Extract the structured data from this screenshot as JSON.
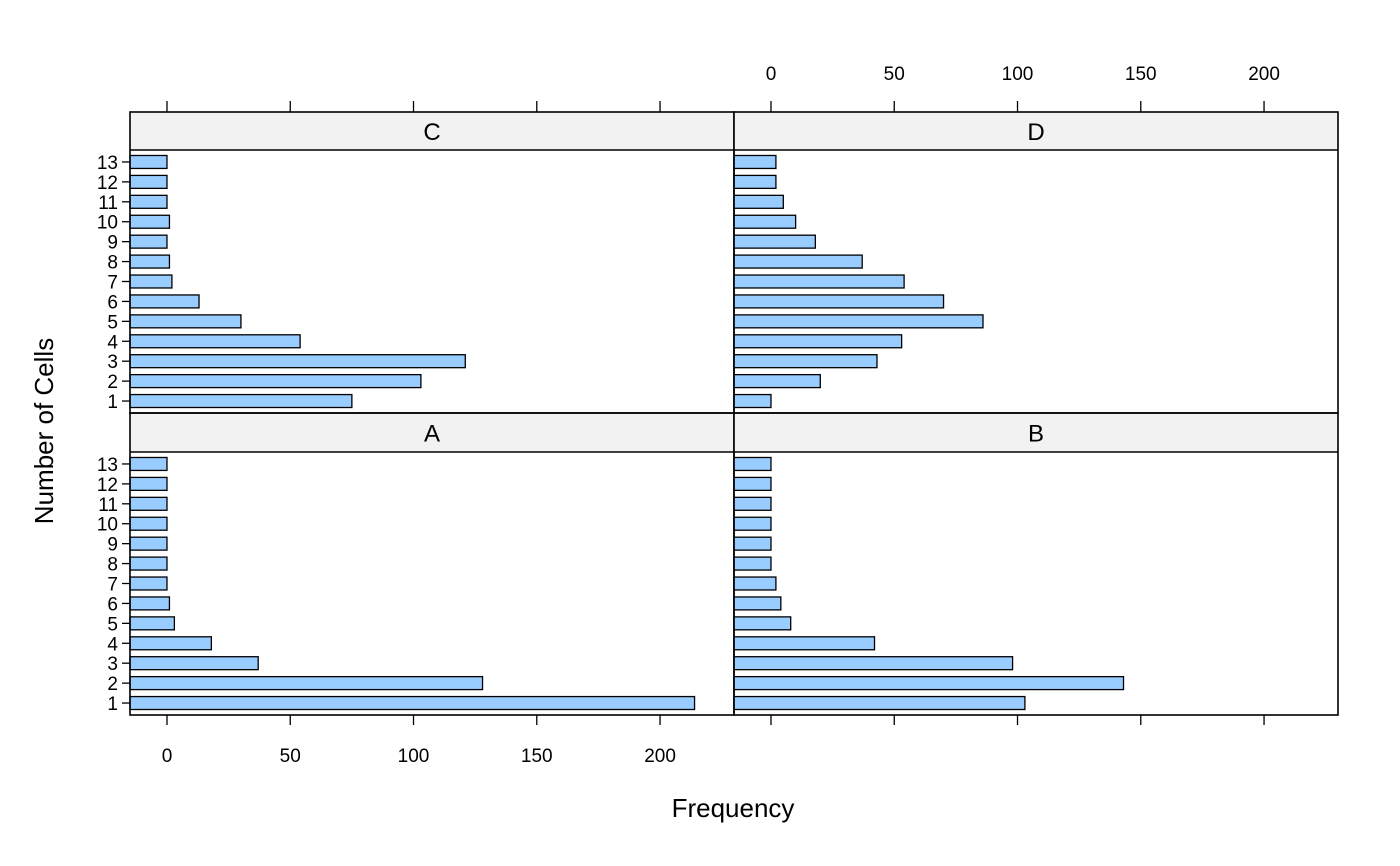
{
  "chart_data": {
    "type": "bar",
    "orientation": "horizontal",
    "layout": "2x2 panels",
    "xlabel": "Frequency",
    "ylabel": "Number of Cells",
    "categories": [
      "1",
      "2",
      "3",
      "4",
      "5",
      "6",
      "7",
      "8",
      "9",
      "10",
      "11",
      "12",
      "13"
    ],
    "x_ticks": [
      0,
      50,
      100,
      150,
      200
    ],
    "xlim": [
      -15,
      230
    ],
    "bar_color": "#99CCFF",
    "strip_color": "#F2F2F2",
    "panels": [
      {
        "name": "A",
        "values": [
          214,
          128,
          37,
          18,
          3,
          1,
          0,
          0,
          0,
          0,
          0,
          0,
          0
        ]
      },
      {
        "name": "B",
        "values": [
          103,
          143,
          98,
          42,
          8,
          4,
          2,
          0,
          0,
          0,
          0,
          0,
          0
        ]
      },
      {
        "name": "C",
        "values": [
          75,
          103,
          121,
          54,
          30,
          13,
          2,
          1,
          0,
          1,
          0,
          0,
          0
        ]
      },
      {
        "name": "D",
        "values": [
          0,
          20,
          43,
          53,
          86,
          70,
          54,
          37,
          18,
          10,
          5,
          2,
          2
        ]
      }
    ]
  }
}
